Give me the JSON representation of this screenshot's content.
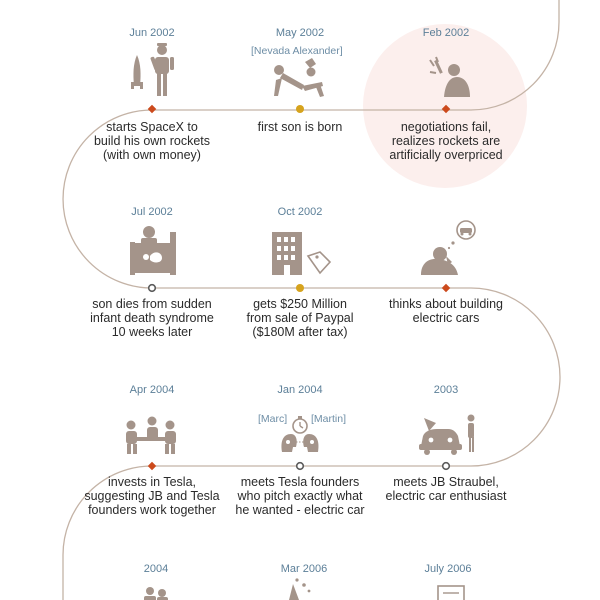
{
  "colors": {
    "path": "#c4b3a6",
    "icon": "#a4948a",
    "date": "#5c7f98",
    "caption": "#2b2b2b",
    "dot_red": "#cc4a1c",
    "dot_gold": "#d6a31d",
    "dot_gray": "#5b5b5b",
    "highlight": "#fcefed"
  },
  "rows": [
    {
      "events": [
        {
          "date": "Jun 2002",
          "caption": [
            "starts SpaceX to",
            "build his own rockets",
            "(with own money)"
          ],
          "icon": "rocket-person-icon",
          "marker": "red-diamond"
        },
        {
          "date": "May 2002",
          "tag": "[Nevada Alexander]",
          "caption": [
            "first son is born"
          ],
          "icon": "birth-icon",
          "marker": "gold-dot"
        },
        {
          "date": "Feb 2002",
          "caption": [
            "negotiations fail,",
            "realizes rockets are",
            "artificially overpriced"
          ],
          "icon": "frustrated-person-icon",
          "marker": "red-diamond",
          "highlighted": true
        }
      ]
    },
    {
      "events": [
        {
          "date": "Jul 2002",
          "caption": [
            "son dies from sudden",
            "infant death syndrome",
            "10 weeks later"
          ],
          "icon": "hospital-bed-icon",
          "marker": "gray-ring"
        },
        {
          "date": "Oct 2002",
          "caption": [
            "gets $250 Million",
            "from sale of Paypal",
            "($180M after tax)"
          ],
          "icon": "building-price-tag-icon",
          "marker": "gold-dot"
        },
        {
          "date": "",
          "caption": [
            "thinks about building",
            "electric cars"
          ],
          "icon": "thinking-car-icon",
          "marker": "red-diamond"
        }
      ]
    },
    {
      "events": [
        {
          "date": "Apr 2004",
          "caption": [
            "invests in Tesla,",
            "suggesting JB and Tesla",
            "founders work together"
          ],
          "icon": "team-meeting-icon",
          "marker": "red-diamond"
        },
        {
          "date": "Jan 2004",
          "tag_left": "[Marc]",
          "tag_right": "[Martin]",
          "caption": [
            "meets Tesla founders",
            "who pitch exactly what",
            "he wanted - electric car"
          ],
          "icon": "founders-pitch-icon",
          "marker": "gray-ring"
        },
        {
          "date": "2003",
          "caption": [
            "meets JB Straubel,",
            "electric car enthusiast"
          ],
          "icon": "car-mechanic-icon",
          "marker": "gray-ring"
        }
      ]
    },
    {
      "events": [
        {
          "date": "2004",
          "icon": "people-icon"
        },
        {
          "date": "Mar 2006",
          "icon": "celebration-icon"
        },
        {
          "date": "July 2006",
          "icon": "document-icon"
        }
      ]
    }
  ]
}
